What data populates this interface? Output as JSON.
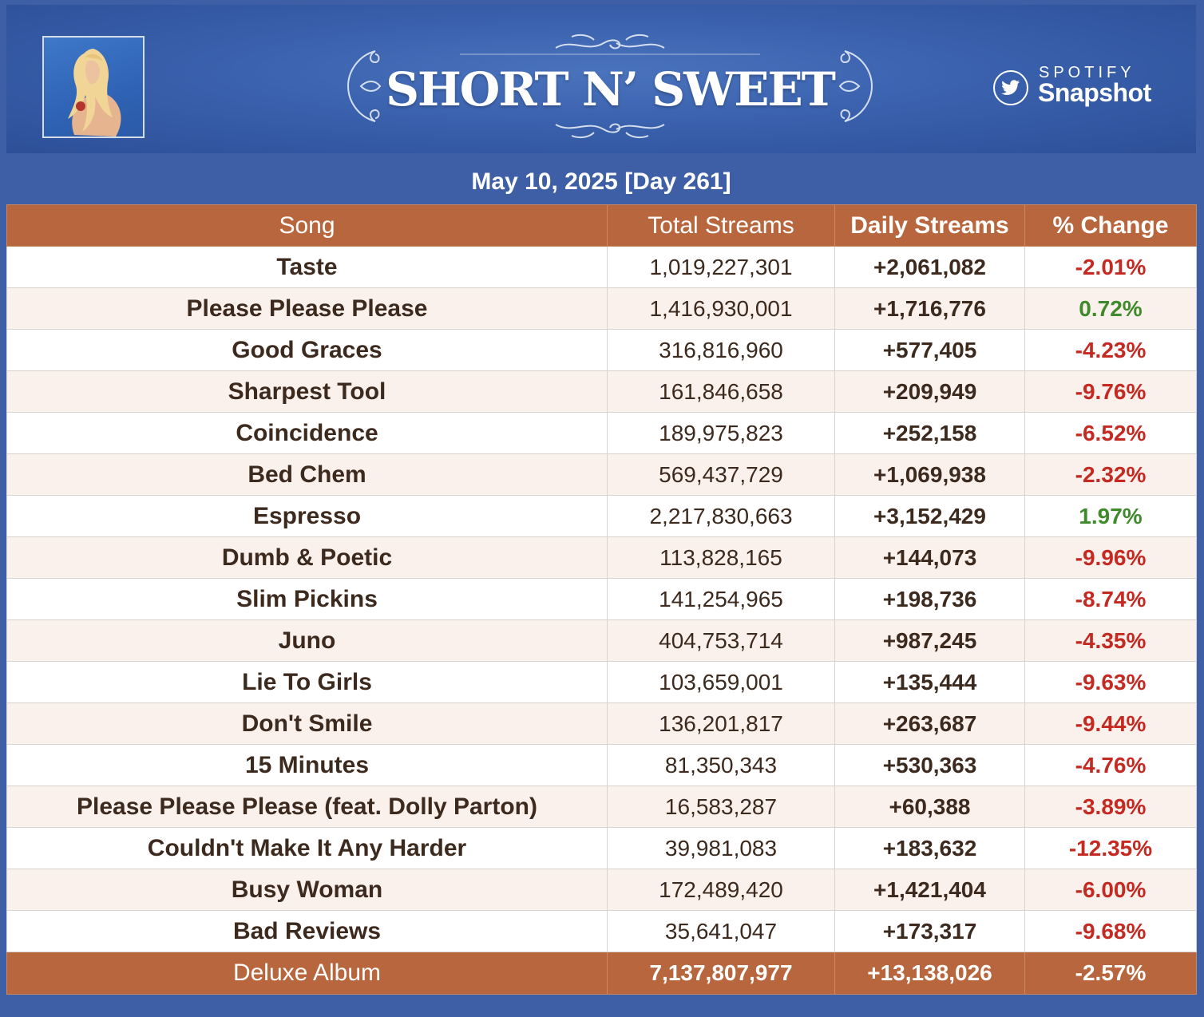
{
  "header": {
    "album_title": "SHORT N’ SWEET",
    "brand_top": "SPOTIFY",
    "brand_bottom": "Snapshot",
    "brand_icon": "twitter-bird-icon",
    "cover_art": "album-cover-image"
  },
  "date_line": "May 10, 2025 [Day 261]",
  "table": {
    "columns": [
      "Song",
      "Total Streams",
      "Daily Streams",
      "% Change"
    ],
    "rows": [
      {
        "song": "Taste",
        "total": "1,019,227,301",
        "daily": "+2,061,082",
        "change": "-2.01%"
      },
      {
        "song": "Please Please Please",
        "total": "1,416,930,001",
        "daily": "+1,716,776",
        "change": "0.72%"
      },
      {
        "song": "Good Graces",
        "total": "316,816,960",
        "daily": "+577,405",
        "change": "-4.23%"
      },
      {
        "song": "Sharpest Tool",
        "total": "161,846,658",
        "daily": "+209,949",
        "change": "-9.76%"
      },
      {
        "song": "Coincidence",
        "total": "189,975,823",
        "daily": "+252,158",
        "change": "-6.52%"
      },
      {
        "song": "Bed Chem",
        "total": "569,437,729",
        "daily": "+1,069,938",
        "change": "-2.32%"
      },
      {
        "song": "Espresso",
        "total": "2,217,830,663",
        "daily": "+3,152,429",
        "change": "1.97%"
      },
      {
        "song": "Dumb & Poetic",
        "total": "113,828,165",
        "daily": "+144,073",
        "change": "-9.96%"
      },
      {
        "song": "Slim Pickins",
        "total": "141,254,965",
        "daily": "+198,736",
        "change": "-8.74%"
      },
      {
        "song": "Juno",
        "total": "404,753,714",
        "daily": "+987,245",
        "change": "-4.35%"
      },
      {
        "song": "Lie To Girls",
        "total": "103,659,001",
        "daily": "+135,444",
        "change": "-9.63%"
      },
      {
        "song": "Don't Smile",
        "total": "136,201,817",
        "daily": "+263,687",
        "change": "-9.44%"
      },
      {
        "song": "15 Minutes",
        "total": "81,350,343",
        "daily": "+530,363",
        "change": "-4.76%"
      },
      {
        "song": "Please Please Please (feat. Dolly Parton)",
        "total": "16,583,287",
        "daily": "+60,388",
        "change": "-3.89%"
      },
      {
        "song": "Couldn't Make It Any Harder",
        "total": "39,981,083",
        "daily": "+183,632",
        "change": "-12.35%"
      },
      {
        "song": "Busy Woman",
        "total": "172,489,420",
        "daily": "+1,421,404",
        "change": "-6.00%"
      },
      {
        "song": "Bad Reviews",
        "total": "35,641,047",
        "daily": "+173,317",
        "change": "-9.68%"
      }
    ],
    "footer": {
      "song": "Deluxe Album",
      "total": "7,137,807,977",
      "daily": "+13,138,026",
      "change": "-2.57%"
    }
  },
  "colors": {
    "banner_blue": "#3e5fa6",
    "header_orange": "#b8663d",
    "negative_red": "#c42a22",
    "positive_green": "#3e8a2c"
  }
}
